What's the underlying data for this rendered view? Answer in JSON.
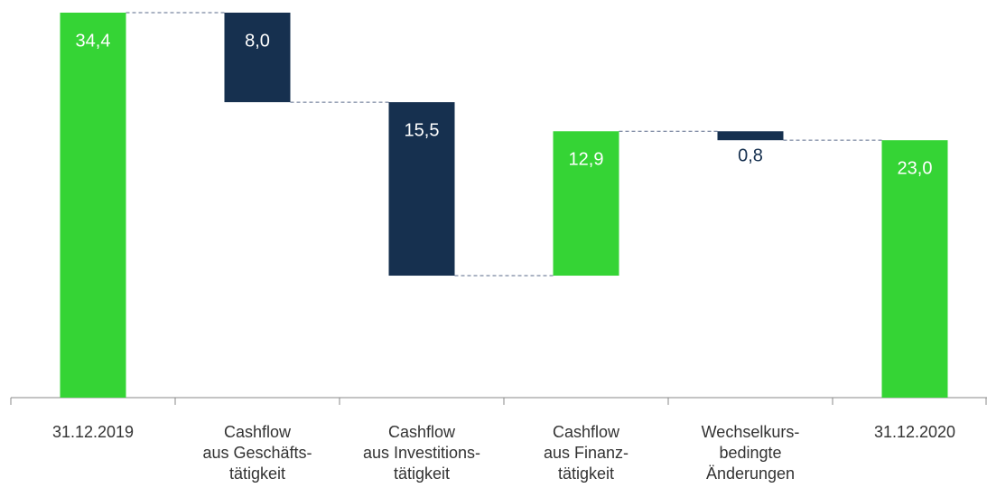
{
  "chart_data": {
    "type": "waterfall",
    "categories": [
      [
        "31.12.2019"
      ],
      [
        "Cashflow",
        "aus Geschäfts-",
        "tätigkeit"
      ],
      [
        "Cashflow",
        "aus Investitions-",
        "tätigkeit"
      ],
      [
        "Cashflow",
        "aus Finanz-",
        "tätigkeit"
      ],
      [
        "Wechselkurs-",
        "bedingte",
        "Änderungen"
      ],
      [
        "31.12.2020"
      ]
    ],
    "values": [
      34.4,
      8.0,
      15.5,
      12.9,
      0.8,
      23.0
    ],
    "value_labels": [
      "34,4",
      "8,0",
      "15,5",
      "12,9",
      "0,8",
      "23,0"
    ],
    "measure": [
      "total",
      "decrease",
      "decrease",
      "increase",
      "decrease",
      "total"
    ],
    "colors": {
      "total": "#35d435",
      "increase": "#35d435",
      "decrease": "#16304f"
    },
    "ylim": [
      0,
      34.4
    ]
  }
}
